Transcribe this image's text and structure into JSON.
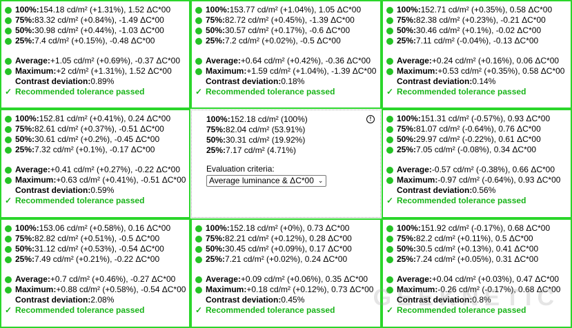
{
  "colors": {
    "pass": "#25c225",
    "border": "#2bd62b"
  },
  "watermark": "GEEKNETIC",
  "cells": [
    {
      "rows": [
        {
          "label": "100%:",
          "value": " 154.18 cd/m² (+1.31%), 1.52 ΔC*00"
        },
        {
          "label": "75%:",
          "value": " 83.32 cd/m² (+0.84%), -1.49 ΔC*00"
        },
        {
          "label": "50%:",
          "value": " 30.98 cd/m² (+0.44%), -1.03 ΔC*00"
        },
        {
          "label": "25%:",
          "value": " 7.4 cd/m² (+0.15%), -0.48 ΔC*00"
        }
      ],
      "average": {
        "label": "Average:",
        "value": " +1.05 cd/m² (+0.69%), -0.37 ΔC*00"
      },
      "maximum": {
        "label": "Maximum:",
        "value": " +2 cd/m² (+1.31%), 1.52 ΔC*00"
      },
      "contrast": {
        "label": "Contrast deviation:",
        "value": " 0.89%"
      },
      "status": "Recommended tolerance passed"
    },
    {
      "rows": [
        {
          "label": "100%:",
          "value": " 153.77 cd/m² (+1.04%), 1.05 ΔC*00"
        },
        {
          "label": "75%:",
          "value": " 82.72 cd/m² (+0.45%), -1.39 ΔC*00"
        },
        {
          "label": "50%:",
          "value": " 30.57 cd/m² (+0.17%), -0.6 ΔC*00"
        },
        {
          "label": "25%:",
          "value": " 7.2 cd/m² (+0.02%), -0.5 ΔC*00"
        }
      ],
      "average": {
        "label": "Average:",
        "value": " +0.64 cd/m² (+0.42%), -0.36 ΔC*00"
      },
      "maximum": {
        "label": "Maximum:",
        "value": " +1.59 cd/m² (+1.04%), -1.39 ΔC*00"
      },
      "contrast": {
        "label": "Contrast deviation:",
        "value": " 0.18%"
      },
      "status": "Recommended tolerance passed"
    },
    {
      "rows": [
        {
          "label": "100%:",
          "value": " 152.71 cd/m² (+0.35%), 0.58 ΔC*00"
        },
        {
          "label": "75%:",
          "value": " 82.38 cd/m² (+0.23%), -0.21 ΔC*00"
        },
        {
          "label": "50%:",
          "value": " 30.46 cd/m² (+0.1%), -0.02 ΔC*00"
        },
        {
          "label": "25%:",
          "value": " 7.11 cd/m² (-0.04%), -0.13 ΔC*00"
        }
      ],
      "average": {
        "label": "Average:",
        "value": " +0.24 cd/m² (+0.16%), 0.06 ΔC*00"
      },
      "maximum": {
        "label": "Maximum:",
        "value": " +0.53 cd/m² (+0.35%), 0.58 ΔC*00"
      },
      "contrast": {
        "label": "Contrast deviation:",
        "value": " 0.14%"
      },
      "status": "Recommended tolerance passed"
    },
    {
      "rows": [
        {
          "label": "100%:",
          "value": " 152.81 cd/m² (+0.41%), 0.24 ΔC*00"
        },
        {
          "label": "75%:",
          "value": " 82.61 cd/m² (+0.37%), -0.51 ΔC*00"
        },
        {
          "label": "50%:",
          "value": " 30.61 cd/m² (+0.2%), -0.45 ΔC*00"
        },
        {
          "label": "25%:",
          "value": " 7.32 cd/m² (+0.1%), -0.17 ΔC*00"
        }
      ],
      "average": {
        "label": "Average:",
        "value": " +0.41 cd/m² (+0.27%), -0.22 ΔC*00"
      },
      "maximum": {
        "label": "Maximum:",
        "value": " +0.63 cd/m² (+0.41%), -0.51 ΔC*00"
      },
      "contrast": {
        "label": "Contrast deviation:",
        "value": " 0.59%"
      },
      "status": "Recommended tolerance passed"
    },
    {
      "reference": true,
      "rows": [
        {
          "label": "100%:",
          "value": " 152.18 cd/m² (100%)"
        },
        {
          "label": "75%:",
          "value": " 82.04 cd/m² (53.91%)"
        },
        {
          "label": "50%:",
          "value": " 30.31 cd/m² (19.92%)"
        },
        {
          "label": "25%:",
          "value": " 7.17 cd/m² (4.71%)"
        }
      ],
      "criteria_label": "Evaluation criteria:",
      "criteria_value": "Average luminance & ΔC*00"
    },
    {
      "rows": [
        {
          "label": "100%:",
          "value": " 151.31 cd/m² (-0.57%), 0.93 ΔC*00"
        },
        {
          "label": "75%:",
          "value": " 81.07 cd/m² (-0.64%), 0.76 ΔC*00"
        },
        {
          "label": "50%:",
          "value": " 29.97 cd/m² (-0.22%), 0.61 ΔC*00"
        },
        {
          "label": "25%:",
          "value": " 7.05 cd/m² (-0.08%), 0.34 ΔC*00"
        }
      ],
      "average": {
        "label": "Average:",
        "value": " -0.57 cd/m² (-0.38%), 0.66 ΔC*00"
      },
      "maximum": {
        "label": "Maximum:",
        "value": " -0.97 cd/m² (-0.64%), 0.93 ΔC*00"
      },
      "contrast": {
        "label": "Contrast deviation:",
        "value": " 0.56%"
      },
      "status": "Recommended tolerance passed"
    },
    {
      "rows": [
        {
          "label": "100%:",
          "value": " 153.06 cd/m² (+0.58%), 0.16 ΔC*00"
        },
        {
          "label": "75%:",
          "value": " 82.82 cd/m² (+0.51%), -0.5 ΔC*00"
        },
        {
          "label": "50%:",
          "value": " 31.12 cd/m² (+0.53%), -0.54 ΔC*00"
        },
        {
          "label": "25%:",
          "value": " 7.49 cd/m² (+0.21%), -0.22 ΔC*00"
        }
      ],
      "average": {
        "label": "Average:",
        "value": " +0.7 cd/m² (+0.46%), -0.27 ΔC*00"
      },
      "maximum": {
        "label": "Maximum:",
        "value": " +0.88 cd/m² (+0.58%), -0.54 ΔC*00"
      },
      "contrast": {
        "label": "Contrast deviation:",
        "value": " 2.08%"
      },
      "status": "Recommended tolerance passed"
    },
    {
      "rows": [
        {
          "label": "100%:",
          "value": " 152.18 cd/m² (+0%), 0.73 ΔC*00"
        },
        {
          "label": "75%:",
          "value": " 82.21 cd/m² (+0.12%), 0.28 ΔC*00"
        },
        {
          "label": "50%:",
          "value": " 30.45 cd/m² (+0.09%), 0.17 ΔC*00"
        },
        {
          "label": "25%:",
          "value": " 7.21 cd/m² (+0.02%), 0.24 ΔC*00"
        }
      ],
      "average": {
        "label": "Average:",
        "value": " +0.09 cd/m² (+0.06%), 0.35 ΔC*00"
      },
      "maximum": {
        "label": "Maximum:",
        "value": " +0.18 cd/m² (+0.12%), 0.73 ΔC*00"
      },
      "contrast": {
        "label": "Contrast deviation:",
        "value": " 0.45%"
      },
      "status": "Recommended tolerance passed"
    },
    {
      "rows": [
        {
          "label": "100%:",
          "value": " 151.92 cd/m² (-0.17%), 0.68 ΔC*00"
        },
        {
          "label": "75%:",
          "value": " 82.2 cd/m² (+0.11%), 0.5 ΔC*00"
        },
        {
          "label": "50%:",
          "value": " 30.5 cd/m² (+0.13%), 0.41 ΔC*00"
        },
        {
          "label": "25%:",
          "value": " 7.24 cd/m² (+0.05%), 0.31 ΔC*00"
        }
      ],
      "average": {
        "label": "Average:",
        "value": " +0.04 cd/m² (+0.03%), 0.47 ΔC*00"
      },
      "maximum": {
        "label": "Maximum:",
        "value": " -0.26 cd/m² (-0.17%), 0.68 ΔC*00"
      },
      "contrast": {
        "label": "Contrast deviation:",
        "value": " 0.8%"
      },
      "status": "Recommended tolerance passed"
    }
  ]
}
